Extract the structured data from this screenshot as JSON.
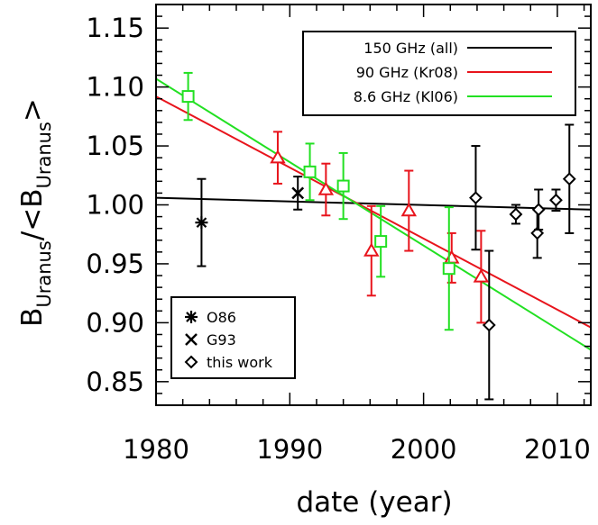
{
  "chart_data": {
    "type": "scatter",
    "title": "",
    "xlabel": "date (year)",
    "ylabel": {
      "base": "B",
      "sub": "Uranus",
      "mid": "/<B",
      "sub2": "Uranus",
      "end": ">"
    },
    "xlim": [
      1980,
      2012.5
    ],
    "ylim": [
      0.83,
      1.17
    ],
    "x_ticks": [
      1980,
      1990,
      2000,
      2010
    ],
    "x_tick_labels": [
      "1980",
      "1990",
      "2000",
      "2010"
    ],
    "y_ticks": [
      0.85,
      0.9,
      0.95,
      1.0,
      1.05,
      1.1,
      1.15
    ],
    "y_tick_labels": [
      "0.85",
      "0.90",
      "0.95",
      "1.00",
      "1.05",
      "1.10",
      "1.15"
    ],
    "legend_lines": {
      "placement": "top-right",
      "entries": [
        {
          "label": "150 GHz (all)",
          "color": "#000000"
        },
        {
          "label": "90 GHz (Kr08)",
          "color": "#e8141c"
        },
        {
          "label": "8.6 GHz (Kl06)",
          "color": "#22e022"
        }
      ]
    },
    "legend_markers": {
      "placement": "bottom-left",
      "entries": [
        {
          "label": "O86",
          "marker": "asterisk"
        },
        {
          "label": "G93",
          "marker": "cross"
        },
        {
          "label": "this work",
          "marker": "diamond"
        }
      ]
    },
    "fit_lines": [
      {
        "color": "#000000",
        "x": [
          1980,
          2012.5
        ],
        "y": [
          1.006,
          0.996
        ]
      },
      {
        "color": "#e8141c",
        "x": [
          1980,
          2012.5
        ],
        "y": [
          1.092,
          0.896
        ]
      },
      {
        "color": "#22e022",
        "x": [
          1980,
          2012.5
        ],
        "y": [
          1.107,
          0.877
        ]
      }
    ],
    "series": [
      {
        "marker": "asterisk",
        "color": "#000000",
        "points": [
          {
            "x": 1983.4,
            "y": 0.985,
            "err": 0.037
          }
        ]
      },
      {
        "marker": "cross",
        "color": "#000000",
        "points": [
          {
            "x": 1990.6,
            "y": 1.01,
            "err": 0.014
          }
        ]
      },
      {
        "marker": "diamond",
        "color": "#000000",
        "points": [
          {
            "x": 2003.9,
            "y": 1.006,
            "err": 0.044
          },
          {
            "x": 2004.9,
            "y": 0.898,
            "err": 0.063
          },
          {
            "x": 2006.9,
            "y": 0.992,
            "err": 0.008
          },
          {
            "x": 2008.5,
            "y": 0.976,
            "err": 0.021
          },
          {
            "x": 2008.6,
            "y": 0.996,
            "err": 0.017
          },
          {
            "x": 2009.9,
            "y": 1.004,
            "err": 0.009
          },
          {
            "x": 2010.9,
            "y": 1.022,
            "err": 0.046
          }
        ]
      },
      {
        "marker": "triangle",
        "color": "#e8141c",
        "points": [
          {
            "x": 1989.1,
            "y": 1.04,
            "err": 0.022
          },
          {
            "x": 1992.7,
            "y": 1.013,
            "err": 0.022
          },
          {
            "x": 1996.1,
            "y": 0.961,
            "err": 0.038
          },
          {
            "x": 1998.9,
            "y": 0.995,
            "err": 0.034
          },
          {
            "x": 2002.1,
            "y": 0.955,
            "err": 0.021
          },
          {
            "x": 2004.3,
            "y": 0.939,
            "err": 0.039
          }
        ]
      },
      {
        "marker": "square",
        "color": "#22e022",
        "points": [
          {
            "x": 1982.4,
            "y": 1.092,
            "err": 0.02
          },
          {
            "x": 1991.5,
            "y": 1.028,
            "err": 0.024
          },
          {
            "x": 1994.0,
            "y": 1.016,
            "err": 0.028
          },
          {
            "x": 1996.8,
            "y": 0.969,
            "err": 0.03
          },
          {
            "x": 2001.9,
            "y": 0.946,
            "err": 0.052
          }
        ]
      }
    ]
  }
}
